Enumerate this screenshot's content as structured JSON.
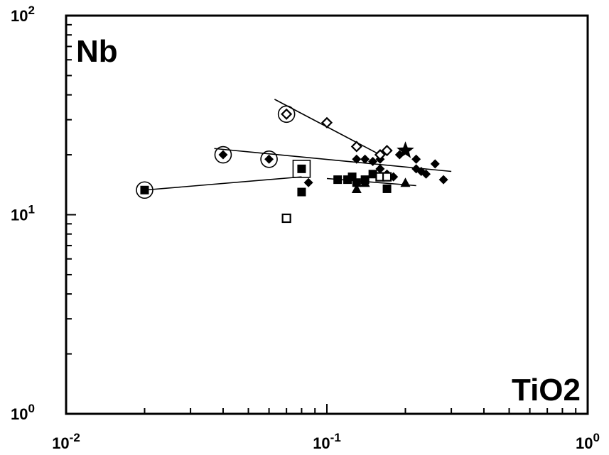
{
  "chart_data": {
    "type": "scatter",
    "title": "",
    "xlabel": "TiO2",
    "ylabel": "Nb",
    "x_scale": "log",
    "y_scale": "log",
    "xlim": [
      0.01,
      1
    ],
    "ylim": [
      1,
      100
    ],
    "grid": false,
    "x_ticks": [
      {
        "base": "10",
        "exp": "-2"
      },
      {
        "base": "10",
        "exp": "-1"
      },
      {
        "base": "10",
        "exp": "0"
      }
    ],
    "y_ticks": [
      {
        "base": "10",
        "exp": "0"
      },
      {
        "base": "10",
        "exp": "1"
      },
      {
        "base": "10",
        "exp": "2"
      }
    ],
    "series": [
      {
        "marker": "filled-diamond",
        "points": [
          [
            0.04,
            20
          ],
          [
            0.06,
            19
          ],
          [
            0.085,
            14.5
          ],
          [
            0.13,
            19
          ],
          [
            0.14,
            19
          ],
          [
            0.15,
            18.5
          ],
          [
            0.16,
            19
          ],
          [
            0.16,
            17
          ],
          [
            0.17,
            16
          ],
          [
            0.18,
            15.5
          ],
          [
            0.19,
            20
          ],
          [
            0.22,
            19
          ],
          [
            0.22,
            17
          ],
          [
            0.23,
            16.5
          ],
          [
            0.24,
            16
          ],
          [
            0.26,
            18
          ],
          [
            0.28,
            15
          ]
        ]
      },
      {
        "marker": "open-diamond",
        "points": [
          [
            0.07,
            32
          ],
          [
            0.1,
            29
          ],
          [
            0.13,
            22
          ],
          [
            0.16,
            20
          ],
          [
            0.17,
            21
          ]
        ]
      },
      {
        "marker": "filled-square",
        "points": [
          [
            0.02,
            13.3
          ],
          [
            0.08,
            17
          ],
          [
            0.08,
            13
          ],
          [
            0.11,
            15
          ],
          [
            0.12,
            15
          ],
          [
            0.125,
            15.5
          ],
          [
            0.13,
            14.5
          ],
          [
            0.14,
            15
          ],
          [
            0.15,
            16
          ],
          [
            0.17,
            13.5
          ]
        ]
      },
      {
        "marker": "open-square",
        "points": [
          [
            0.07,
            9.6
          ],
          [
            0.16,
            15.5
          ],
          [
            0.17,
            15.5
          ]
        ]
      },
      {
        "marker": "filled-triangle",
        "points": [
          [
            0.13,
            13.5
          ],
          [
            0.14,
            14.5
          ],
          [
            0.2,
            14.5
          ]
        ]
      },
      {
        "marker": "star",
        "points": [
          [
            0.2,
            21
          ]
        ]
      }
    ],
    "circled_points": [
      [
        0.02,
        13.3
      ],
      [
        0.04,
        20
      ],
      [
        0.06,
        19
      ],
      [
        0.07,
        32
      ]
    ],
    "boxed_points": [
      [
        0.08,
        17
      ]
    ],
    "trend_lines": [
      [
        [
          0.063,
          38
        ],
        [
          0.16,
          20
        ]
      ],
      [
        [
          0.037,
          21.5
        ],
        [
          0.3,
          16.5
        ]
      ],
      [
        [
          0.02,
          13.3
        ],
        [
          0.08,
          15.5
        ]
      ],
      [
        [
          0.1,
          15.2
        ],
        [
          0.22,
          14
        ]
      ]
    ]
  }
}
